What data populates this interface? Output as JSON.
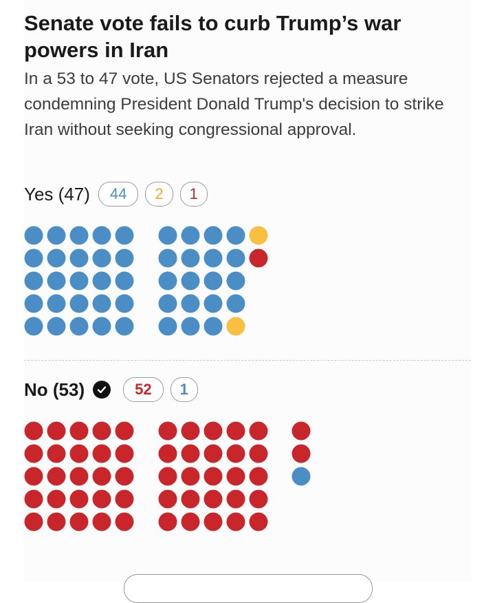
{
  "colors": {
    "blue": "#4b8ec6",
    "gold": "#f8bf40",
    "red": "#c8262b"
  },
  "chart_data": {
    "type": "waffle",
    "title": "Senate vote fails to curb Trump’s war powers in Iran",
    "subtitle": "In a 53 to 47 vote, US Senators rejected a measure condemning President Donald Trump's decision to strike Iran without seeking congressional approval.",
    "groups": [
      {
        "key": "yes",
        "label": "Yes (47)",
        "total": 47,
        "passed": false,
        "badges": [
          {
            "count": "44",
            "color": "blue"
          },
          {
            "count": "2",
            "color": "gold"
          },
          {
            "count": "1",
            "color": "red"
          }
        ]
      },
      {
        "key": "no",
        "label": "No (53)",
        "total": 53,
        "passed": true,
        "badges": [
          {
            "count": "52",
            "color": "red"
          },
          {
            "count": "1",
            "color": "blue"
          }
        ]
      }
    ]
  }
}
